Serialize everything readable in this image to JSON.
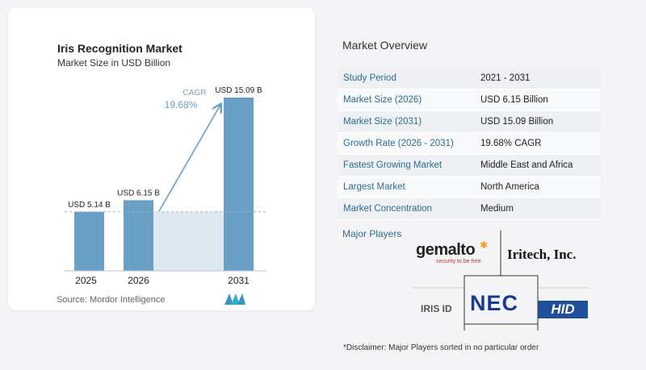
{
  "chart": {
    "title": "Iris Recognition Market",
    "subtitle": "Market Size in USD Billion",
    "cagr_label": "CAGR",
    "cagr_value": "19.68%",
    "source": "Source:  Mordor Intelligence"
  },
  "chart_data": {
    "type": "bar",
    "categories": [
      "2025",
      "2026",
      "2031"
    ],
    "values": [
      5.14,
      6.15,
      15.09
    ],
    "data_labels": [
      "USD 5.14 B",
      "USD 6.15 B",
      "USD 15.09 B"
    ],
    "title": "Iris Recognition Market",
    "subtitle": "Market Size in USD Billion",
    "xlabel": "",
    "ylabel": "",
    "ylim": [
      0,
      16
    ],
    "grid": false,
    "colors": {
      "bar": "#6a9fc6",
      "gap_fill": "#dfe8f1",
      "baseline": "#b8c3cc",
      "arrow": "#6a9fc6"
    }
  },
  "overview": {
    "title": "Market Overview",
    "rows": [
      {
        "key": "Study Period",
        "value": "2021 - 2031"
      },
      {
        "key": "Market Size (2026)",
        "value": "USD 6.15 Billion"
      },
      {
        "key": "Market Size (2031)",
        "value": "USD 15.09 Billion"
      },
      {
        "key": "Growth Rate (2026 - 2031)",
        "value": "19.68% CAGR"
      },
      {
        "key": "Fastest Growing Market",
        "value": "Middle East and Africa"
      },
      {
        "key": "Largest Market",
        "value": "North America"
      },
      {
        "key": "Market Concentration",
        "value": "Medium"
      }
    ]
  },
  "players": {
    "title": "Major Players",
    "logos": {
      "gemalto": "gemalto",
      "gemalto_tag": "security to be free",
      "iritech": "Iritech, Inc.",
      "irisid": "IRIS ID",
      "nec": "NEC",
      "hid": "HID"
    }
  },
  "disclaimer": "*Disclaimer: Major Players sorted in no particular order"
}
